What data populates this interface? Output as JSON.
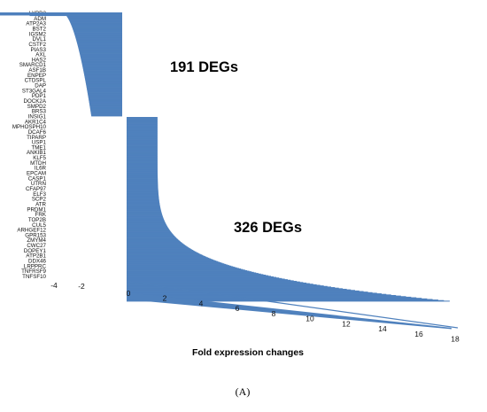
{
  "chart_data": {
    "type": "bar",
    "orientation": "horizontal",
    "xlabel": "Fold expression changes",
    "x_ticks": [
      "-4",
      "-2",
      "0",
      "2",
      "4",
      "6",
      "8",
      "10",
      "12",
      "14",
      "16",
      "18"
    ],
    "xlim": [
      -4,
      18
    ],
    "grid": false,
    "color": "#4f81bd",
    "gene_labels": [
      "LYPD3",
      "ADM",
      "ATP2A3",
      "BST2",
      "IGSM2",
      "DVL1",
      "CSTF2",
      "PIAS3",
      "AXL",
      "HAS2",
      "SMARCD1",
      "ASF1B",
      "ENPEP",
      "CTDSPL",
      "DAP",
      "ST3GAL4",
      "PDP1",
      "DOCK2A",
      "SMPD2",
      "BRS3",
      "INSIG1",
      "AKR1C4",
      "MPHOSPH10",
      "DCAF6",
      "TIPARP",
      "USP1",
      "TME1",
      "ANKIB1",
      "KLF5",
      "MTDH",
      "IL6R",
      "EPCAM",
      "CASP1",
      "UTRN",
      "CFAP97",
      "ELF3",
      "SCP2",
      "ATR",
      "PRDM1",
      "FRK",
      "TOP2B",
      "CUL5",
      "ARHGEF12",
      "GPR153",
      "ZMYM4",
      "CWC27",
      "DOPEY1",
      "ATP2B1",
      "DDX46",
      "LRPPRC",
      "TNFRSF9",
      "TNFSF10"
    ],
    "annotations": [
      "191 DEGs",
      "326 DEGs"
    ],
    "series": [
      {
        "direction": "down",
        "count": 191,
        "value_range": [
          -3.3,
          -1.7
        ]
      },
      {
        "direction": "up",
        "count": 326,
        "value_range": [
          1.7,
          17.8
        ]
      }
    ],
    "caption": "(A)"
  }
}
